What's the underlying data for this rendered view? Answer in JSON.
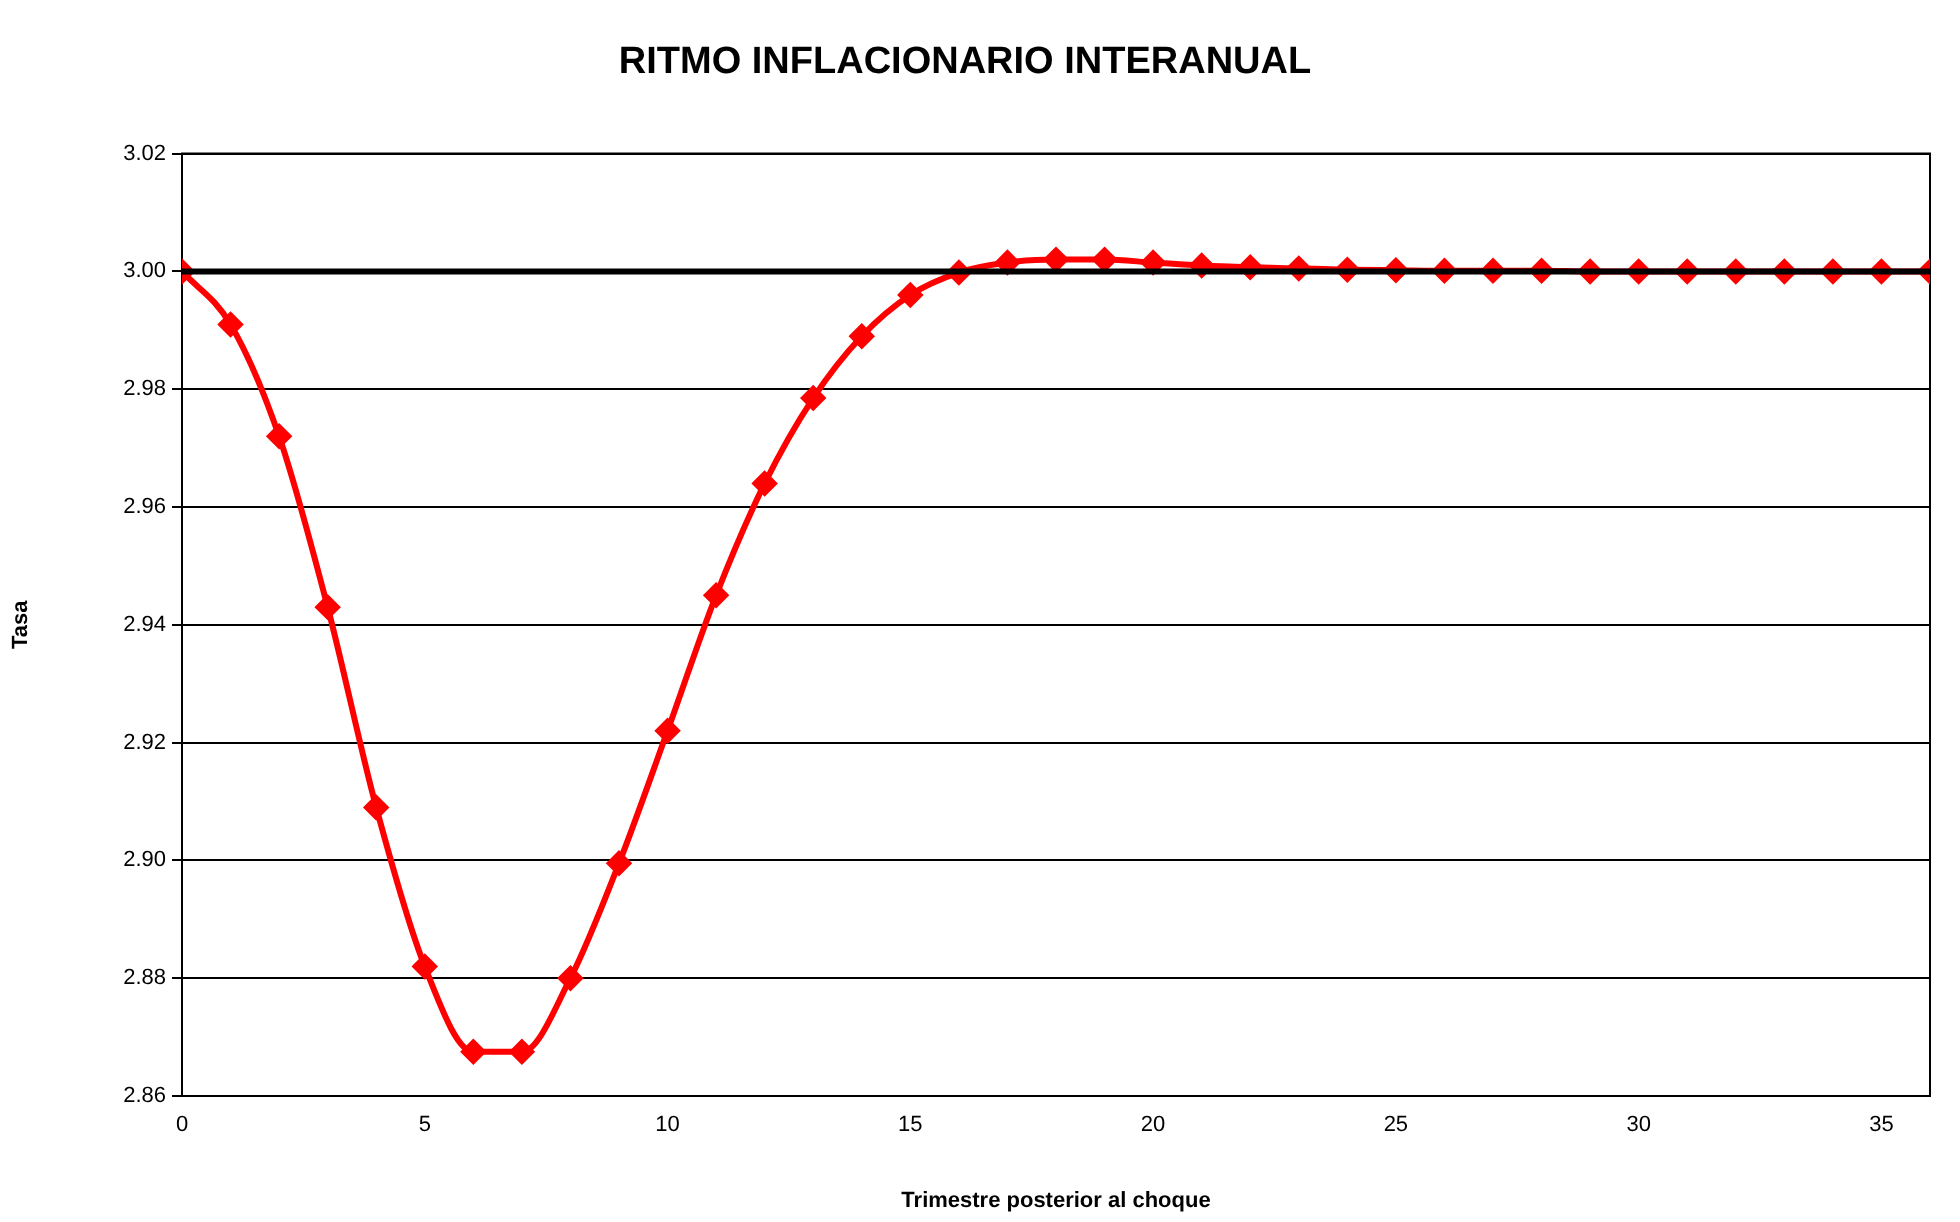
{
  "chart_data": {
    "type": "line",
    "title": "RITMO INFLACIONARIO INTERANUAL",
    "xlabel": "Trimestre posterior al choque",
    "ylabel": "Tasa",
    "x": [
      0,
      1,
      2,
      3,
      4,
      5,
      6,
      7,
      8,
      9,
      10,
      11,
      12,
      13,
      14,
      15,
      16,
      17,
      18,
      19,
      20,
      21,
      22,
      23,
      24,
      25,
      26,
      27,
      28,
      29,
      30,
      31,
      32,
      33,
      34,
      35,
      36
    ],
    "series": [
      {
        "color": "#ff0000",
        "values": [
          3.0,
          2.991,
          2.972,
          2.943,
          2.909,
          2.882,
          2.8675,
          2.8675,
          2.88,
          2.8995,
          2.922,
          2.945,
          2.964,
          2.9785,
          2.989,
          2.996,
          2.9998,
          3.0015,
          3.002,
          3.002,
          3.0015,
          3.001,
          3.0007,
          3.0005,
          3.0003,
          3.0002,
          3.0001,
          3.0001,
          3.0001,
          3.0,
          3.0,
          3.0,
          3.0,
          3.0,
          3.0,
          3.0,
          3.0
        ]
      }
    ],
    "xlim": [
      0,
      36
    ],
    "xticks": [
      0,
      5,
      10,
      15,
      20,
      25,
      30,
      35
    ],
    "ylim": [
      2.86,
      3.02
    ],
    "yticks": [
      2.86,
      2.88,
      {
        "value": 2.9,
        "label": "2.90"
      },
      2.92,
      2.94,
      2.96,
      2.98,
      {
        "value": 3,
        "label": "3.00"
      },
      3.02
    ],
    "ref_lines": [
      {
        "axis": "y",
        "value": 3,
        "color": "#000000"
      }
    ],
    "grid": "y",
    "legend": false,
    "marker": "diamond",
    "line_style": "solid"
  }
}
